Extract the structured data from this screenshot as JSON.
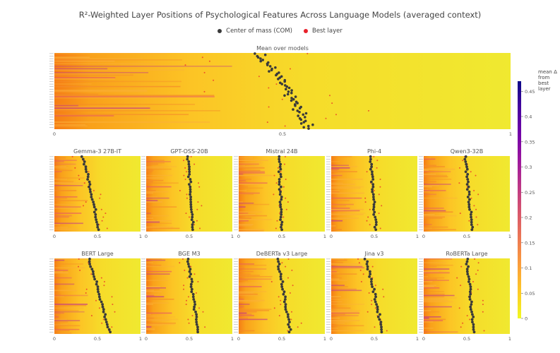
{
  "title": "R²-Weighted Layer Positions of Psychological Features Across Language Models (averaged context)",
  "legend": {
    "com_label": "Center of mass (COM)",
    "best_label": "Best layer",
    "com_color": "#3a3a3a",
    "best_color": "#e8202a"
  },
  "colorbar": {
    "title_line1": "mean Δ from",
    "title_line2": "best layer",
    "ticks": [
      "0",
      "0.05",
      "0.1",
      "0.15",
      "0.2",
      "0.25",
      "0.3",
      "0.35",
      "0.4",
      "0.45"
    ],
    "range": [
      0,
      0.47
    ],
    "colorscale": [
      "#f0f921",
      "#fdca26",
      "#fb9f3a",
      "#ed7953",
      "#d8576b",
      "#bd3786",
      "#9c179e",
      "#7201a8",
      "#46039f",
      "#0d0887"
    ]
  },
  "chart_data": [
    {
      "type": "heatmap",
      "title": "Mean over models",
      "xlim": [
        0,
        1
      ],
      "xticks": [
        "0",
        "0.5",
        "1"
      ],
      "com_start": 0.45,
      "com_end": 0.56,
      "best_spread": 0.18
    },
    {
      "type": "heatmap",
      "title": "Gemma-3 27B-IT",
      "xlim": [
        0,
        1
      ],
      "xticks": [
        "0",
        "0.5",
        "1"
      ],
      "com_start": 0.33,
      "com_end": 0.52,
      "best_spread": 0.12
    },
    {
      "type": "heatmap",
      "title": "GPT-OSS-20B",
      "xlim": [
        0,
        1
      ],
      "xticks": [
        "0",
        "0.5",
        "1"
      ],
      "com_start": 0.48,
      "com_end": 0.55,
      "best_spread": 0.12
    },
    {
      "type": "heatmap",
      "title": "Mistral 24B",
      "xlim": [
        0,
        1
      ],
      "xticks": [
        "0",
        "0.5",
        "1"
      ],
      "com_start": 0.47,
      "com_end": 0.5,
      "best_spread": 0.1
    },
    {
      "type": "heatmap",
      "title": "Phi-4",
      "xlim": [
        0,
        1
      ],
      "xticks": [
        "0",
        "0.5",
        "1"
      ],
      "com_start": 0.45,
      "com_end": 0.52,
      "best_spread": 0.1
    },
    {
      "type": "heatmap",
      "title": "Qwen3-32B",
      "xlim": [
        0,
        1
      ],
      "xticks": [
        "0",
        "0.5",
        "1"
      ],
      "com_start": 0.48,
      "com_end": 0.56,
      "best_spread": 0.12
    },
    {
      "type": "heatmap",
      "title": "BERT Large",
      "xlim": [
        0,
        1
      ],
      "xticks": [
        "0",
        "0.5",
        "1"
      ],
      "com_start": 0.4,
      "com_end": 0.64,
      "best_spread": 0.15
    },
    {
      "type": "heatmap",
      "title": "BGE M3",
      "xlim": [
        0,
        1
      ],
      "xticks": [
        "0",
        "0.5",
        "1"
      ],
      "com_start": 0.48,
      "com_end": 0.6,
      "best_spread": 0.1
    },
    {
      "type": "heatmap",
      "title": "DeBERTa v3 Large",
      "xlim": [
        0,
        1
      ],
      "xticks": [
        "0",
        "0.5",
        "1"
      ],
      "com_start": 0.45,
      "com_end": 0.6,
      "best_spread": 0.15
    },
    {
      "type": "heatmap",
      "title": "Jina v3",
      "xlim": [
        0,
        1
      ],
      "xticks": [
        "0",
        "0.5",
        "1"
      ],
      "com_start": 0.4,
      "com_end": 0.6,
      "best_spread": 0.12
    },
    {
      "type": "heatmap",
      "title": "RoBERTa Large",
      "xlim": [
        0,
        1
      ],
      "xticks": [
        "0",
        "0.5",
        "1"
      ],
      "com_start": 0.5,
      "com_end": 0.58,
      "best_spread": 0.15
    }
  ]
}
